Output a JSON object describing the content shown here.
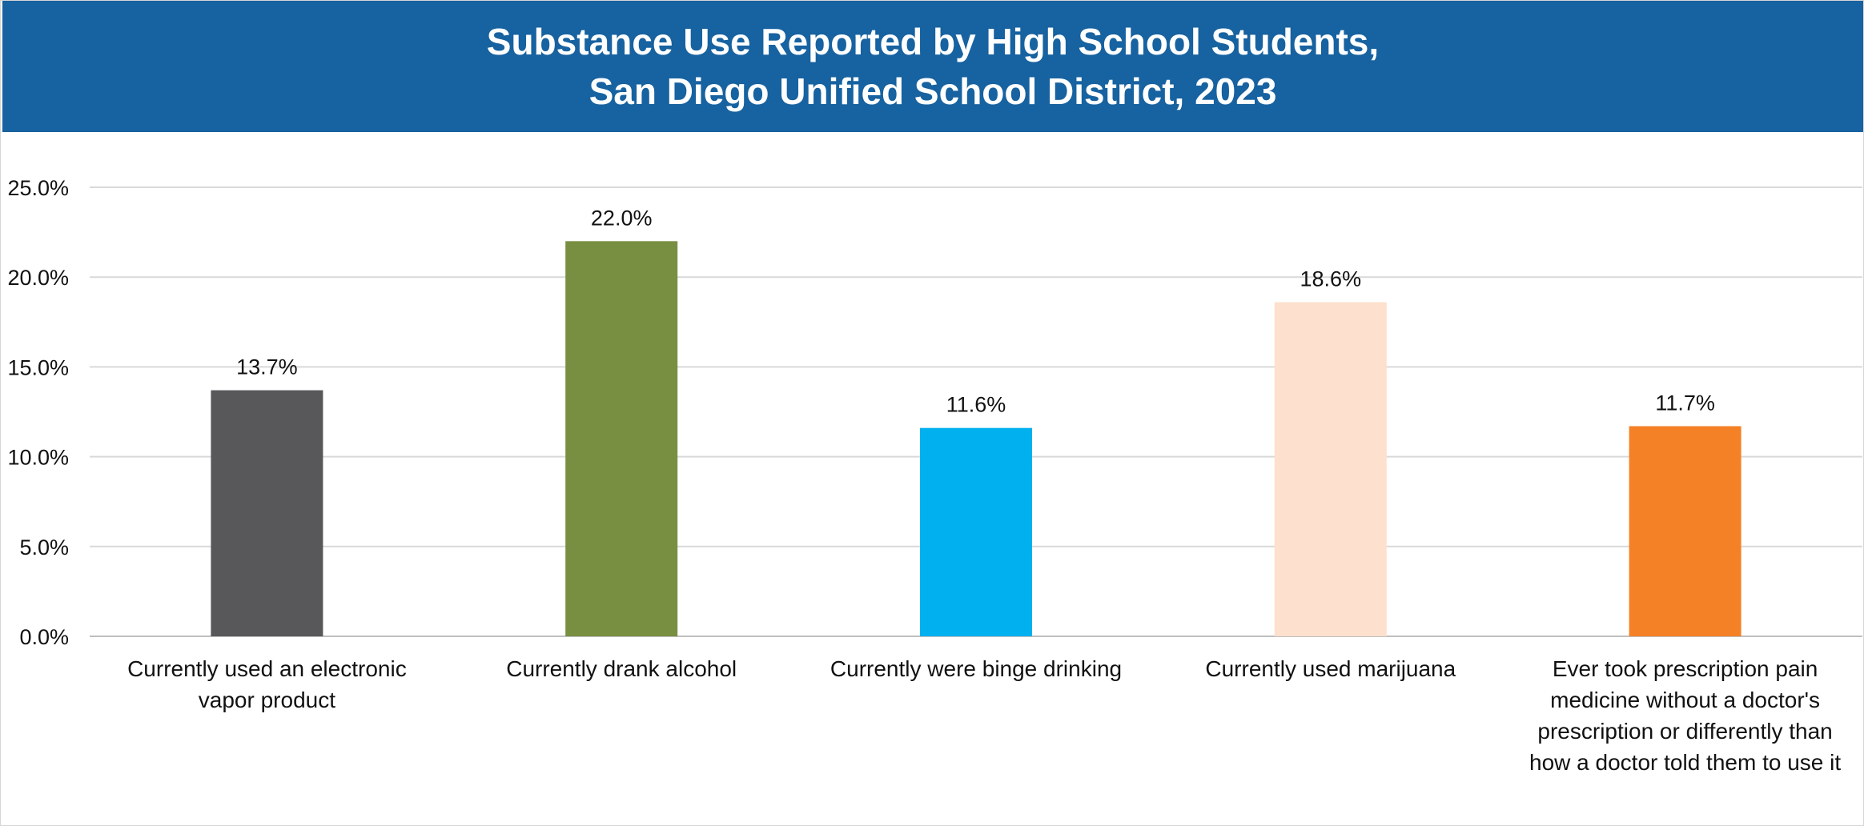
{
  "chart_data": {
    "type": "bar",
    "title_lines": [
      "Substance Use Reported by High School Students,",
      "San Diego Unified School District, 2023"
    ],
    "categories": [
      "Currently used an electronic vapor product",
      "Currently drank alcohol",
      "Currently were binge drinking",
      "Currently used marijuana",
      "Ever took prescription pain medicine without a doctor's prescription or differently than how a doctor told them to use it"
    ],
    "values": [
      13.7,
      22.0,
      11.6,
      18.6,
      11.7
    ],
    "data_labels": [
      "13.7%",
      "22.0%",
      "11.6%",
      "18.6%",
      "11.7%"
    ],
    "bar_colors": [
      "#58585a",
      "#788f41",
      "#00b0ef",
      "#fde0cd",
      "#f58127"
    ],
    "y_ticks": [
      "0.0%",
      "5.0%",
      "10.0%",
      "15.0%",
      "20.0%",
      "25.0%"
    ],
    "ylim": [
      0,
      25
    ],
    "grid": true,
    "legend": "none",
    "title_bar_color": "#1762a0"
  }
}
